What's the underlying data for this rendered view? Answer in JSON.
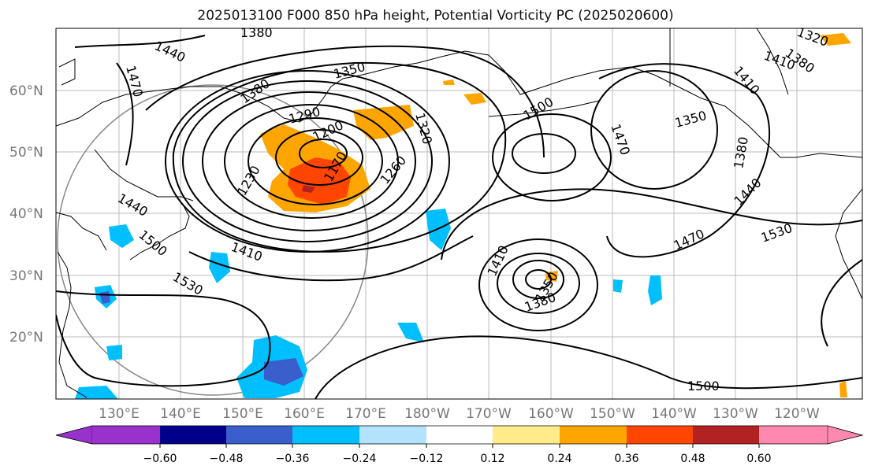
{
  "title": "2025013100 F000 850 hPa height, Potential Vorticity PC (2025020600)",
  "lat_labels": [
    "60°N",
    "50°N",
    "40°N",
    "30°N",
    "20°N"
  ],
  "lon_labels": [
    "130°E",
    "140°E",
    "150°E",
    "160°E",
    "170°E",
    "180°W",
    "170°W",
    "160°W",
    "150°W",
    "140°W",
    "130°W",
    "120°W"
  ],
  "contour_labels": [
    "1380",
    "1440",
    "1470",
    "1350",
    "1380",
    "1290",
    "1200",
    "1170",
    "1230",
    "1260",
    "1320",
    "1500",
    "1470",
    "1410",
    "1350",
    "1380",
    "1410",
    "1440",
    "1470",
    "1530",
    "1410",
    "1530",
    "1440",
    "1500",
    "1410",
    "1350",
    "1380",
    "1500",
    "1380",
    "1320"
  ],
  "colorbar": {
    "colors": [
      "#9932cc",
      "#00008b",
      "#3a5fcd",
      "#00bfff",
      "#b2e2fc",
      "#ffffff",
      "#ffeb8a",
      "#ffa500",
      "#ff4500",
      "#b22222",
      "#ff88b0"
    ],
    "ticks": [
      "−0.60",
      "−0.48",
      "−0.36",
      "−0.24",
      "−0.12",
      "0.12",
      "0.24",
      "0.36",
      "0.48",
      "0.60"
    ]
  }
}
